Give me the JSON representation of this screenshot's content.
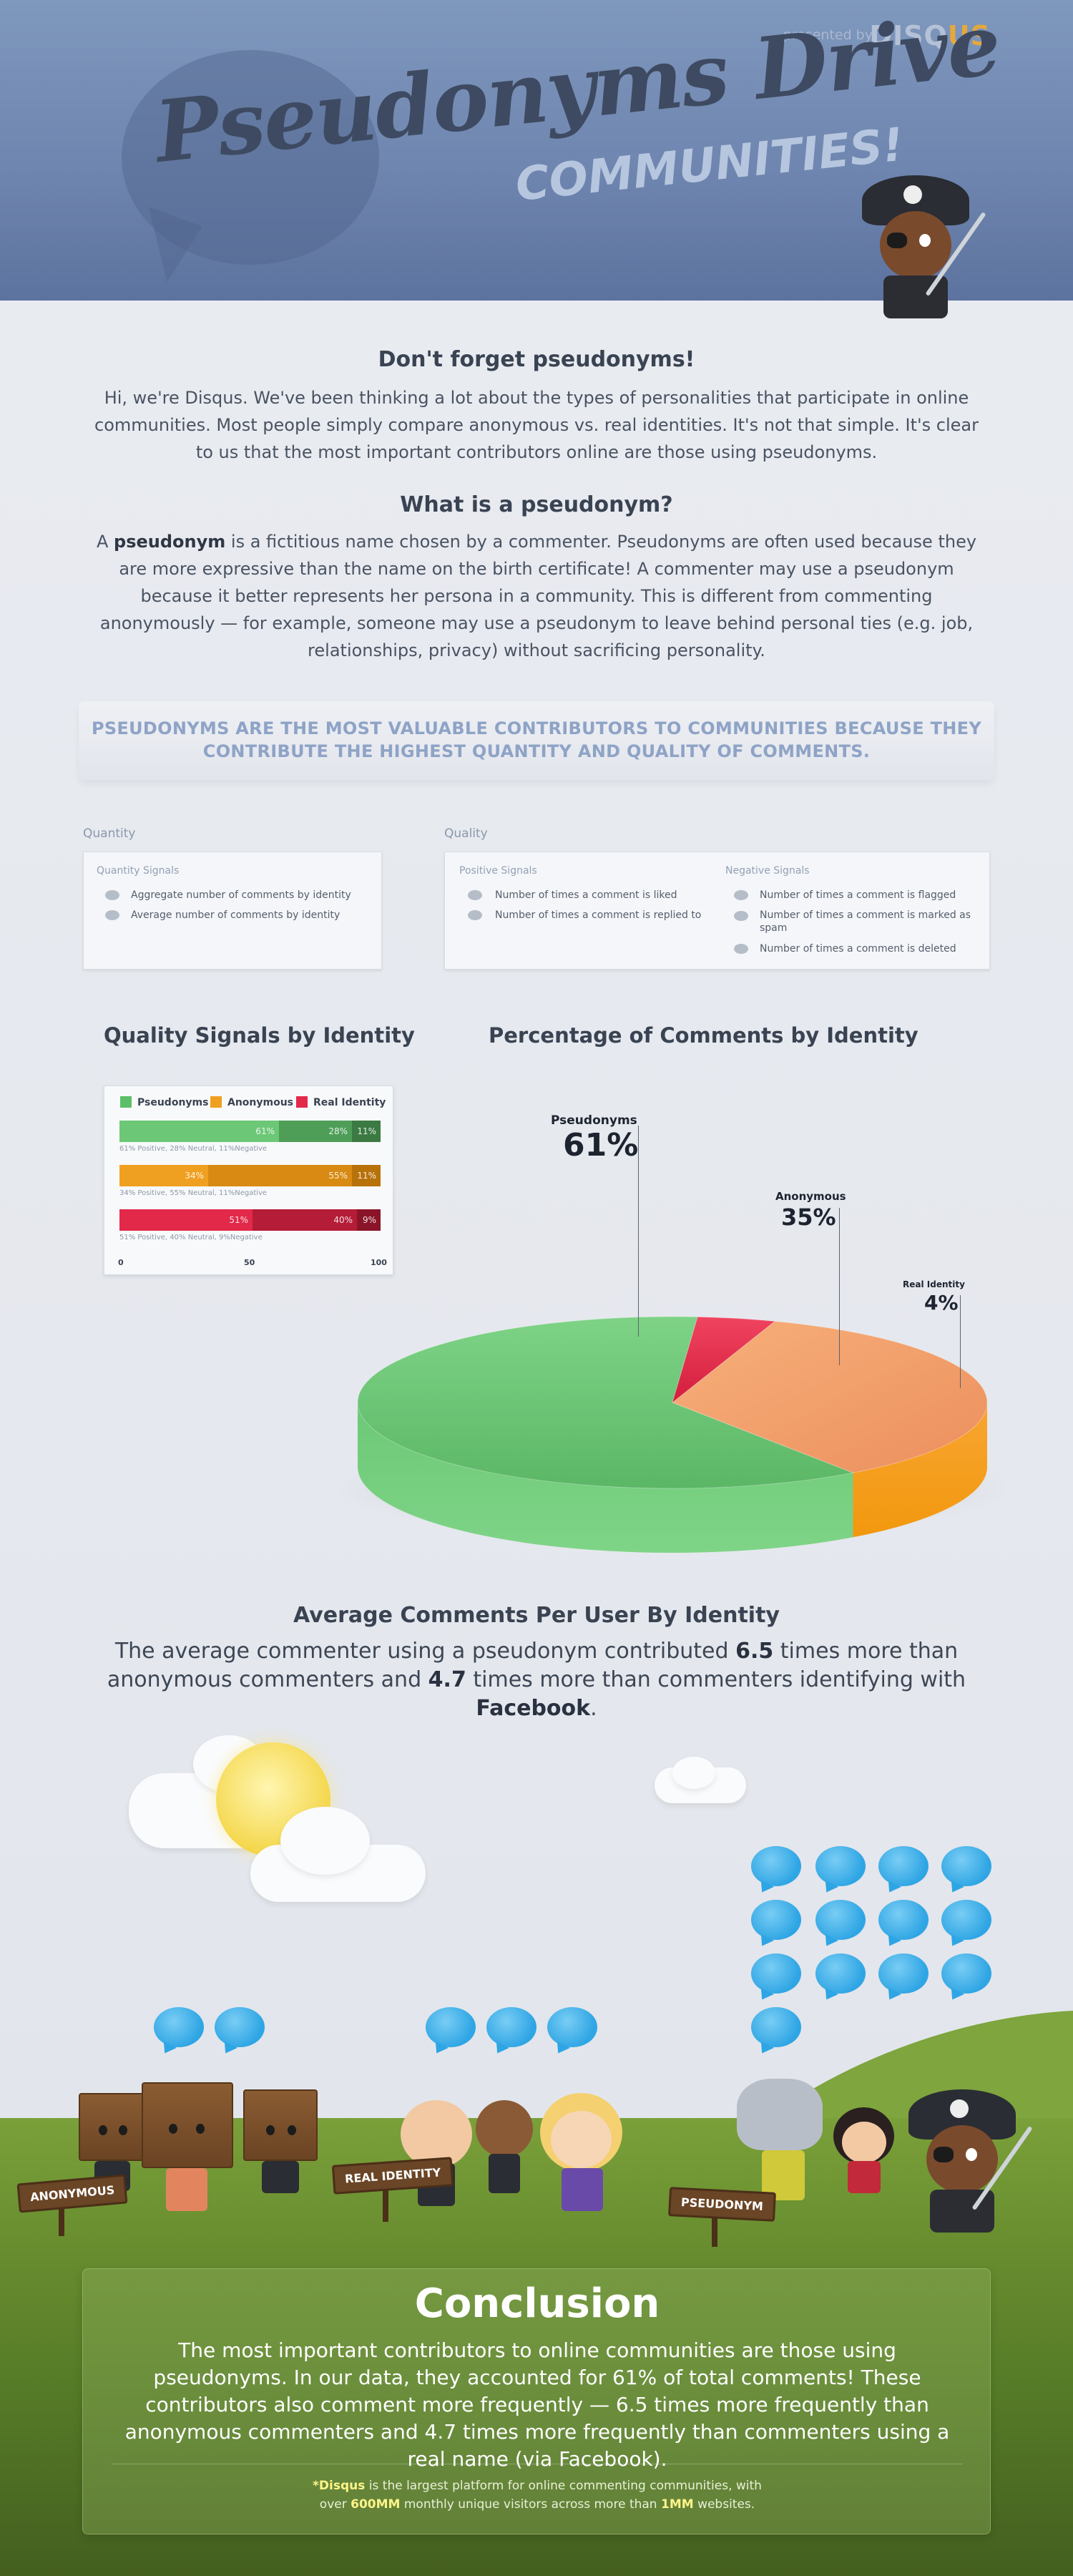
{
  "header": {
    "presented_by": "presented by",
    "logo_disq": "DISQ",
    "logo_us": "US",
    "title": "Pseudonyms Drive",
    "subtitle": "COMMUNITIES!"
  },
  "intro": {
    "heading": "Don't forget pseudonyms!",
    "body": "Hi, we're Disqus. We've been thinking a lot about the types of personalities that participate in online communities. Most people simply compare anonymous vs. real identities. It's not that simple. It's clear to us that the most important contributors online are those using pseudonyms."
  },
  "definition": {
    "heading": "What is a pseudonym?",
    "lead": "A",
    "term": "pseudonym",
    "body": "is a fictitious name chosen by a commenter.  Pseudonyms are often used because they are more expressive than the name on the birth certificate! A commenter may use a pseudonym because it better represents her persona in a community. This is different from commenting anonymously — for example, someone may use a pseudonym to leave behind personal ties (e.g. job, relationships, privacy) without sacrificing personality."
  },
  "banner": {
    "line1": "PSEUDONYMS ARE THE MOST VALUABLE CONTRIBUTORS TO COMMUNITIES BECAUSE THEY",
    "line2": "CONTRIBUTE THE HIGHEST QUANTITY AND QUALITY OF COMMENTS."
  },
  "signals": {
    "quantity_label": "Quantity",
    "quality_label": "Quality",
    "quantity_head": "Quantity Signals",
    "quantity_items": [
      "Aggregate number of comments by identity",
      "Average number of comments by identity"
    ],
    "positive_head": "Positive Signals",
    "positive_items": [
      "Number of times a comment is liked",
      "Number of times a comment is replied to"
    ],
    "negative_head": "Negative Signals",
    "negative_items": [
      "Number of times a comment is flagged",
      "Number of times a comment is marked as spam",
      "Number of times a comment is deleted"
    ]
  },
  "headings": {
    "quality_signals": "Quality Signals by Identity",
    "percentage": "Percentage of Comments by Identity",
    "average": "Average Comments Per User By Identity"
  },
  "chart_data": [
    {
      "type": "bar",
      "title": "Quality Signals by Identity",
      "stacked": true,
      "categories": [
        "Pseudonyms",
        "Anonymous",
        "Real Identity"
      ],
      "series": [
        {
          "name": "Positive",
          "values": [
            61,
            34,
            51
          ]
        },
        {
          "name": "Neutral",
          "values": [
            28,
            55,
            40
          ]
        },
        {
          "name": "Negative",
          "values": [
            11,
            11,
            9
          ]
        }
      ],
      "segment_labels": [
        [
          "61%",
          "28%",
          "11%"
        ],
        [
          "34%",
          "55%",
          "11%"
        ],
        [
          "51%",
          "40%",
          "9%"
        ]
      ],
      "notes": [
        "61% Positive, 28% Neutral, 11%Negative",
        "34% Positive, 55% Neutral, 11%Negative",
        "51% Positive, 40% Neutral, 9%Negative"
      ],
      "legend": [
        "Pseudonyms",
        "Anonymous",
        "Real Identity"
      ],
      "colors": {
        "Pseudonyms": "#5cbf68",
        "Anonymous": "#f0a020",
        "Real Identity": "#e2294a"
      },
      "xticks": [
        "0",
        "50",
        "100"
      ],
      "xlim": [
        0,
        100
      ]
    },
    {
      "type": "pie",
      "title": "Percentage of Comments by Identity",
      "labels": [
        "Pseudonyms",
        "Anonymous",
        "Real Identity"
      ],
      "values": [
        61,
        35,
        4
      ],
      "value_labels": [
        "61%",
        "35%",
        "4%"
      ],
      "colors": [
        "#6cc876",
        "#f4a12e",
        "#e2294a"
      ]
    }
  ],
  "average": {
    "text_a": "The average commenter using a pseudonym contributed",
    "num_a": "6.5",
    "text_b": "times more than anonymous commenters and",
    "num_b": "4.7",
    "text_c": "times more than commenters identifying with",
    "brand": "Facebook",
    "text_d": "."
  },
  "scene": {
    "sign_anonymous": "ANONYMOUS",
    "sign_real": "REAL IDENTITY",
    "sign_pseudonym": "PSEUDONYM"
  },
  "conclusion": {
    "title": "Conclusion",
    "body": "The most important contributors to online communities are those using pseudonyms. In our data, they accounted for 61% of total comments! These contributors also comment more frequently — 6.5 times more frequently than anonymous commenters and 4.7 times more frequently than commenters using a real name (via Facebook).",
    "foot_star": "*Disqus",
    "foot_a": "is the largest platform for online commenting communities, with",
    "foot_b": "over",
    "foot_num1": "600MM",
    "foot_c": "monthly unique visitors across more than",
    "foot_num2": "1MM",
    "foot_d": "websites."
  }
}
